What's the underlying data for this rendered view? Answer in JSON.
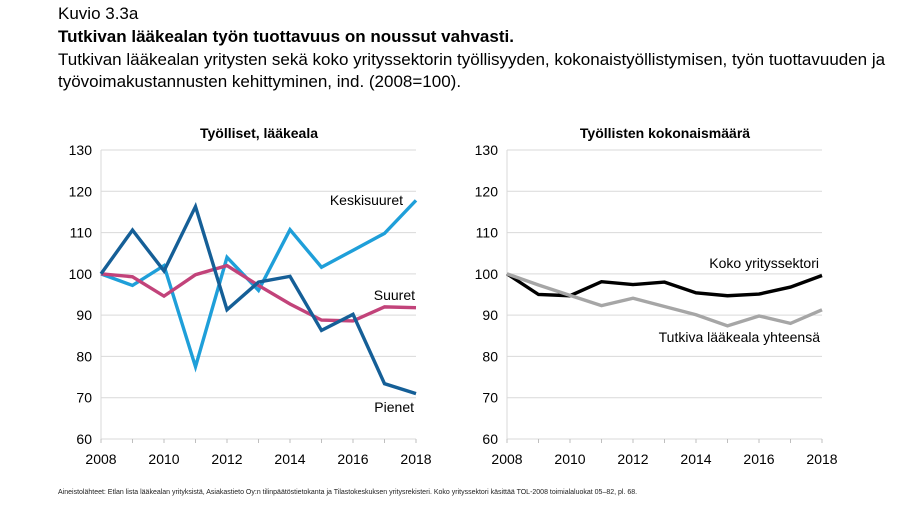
{
  "figure": {
    "label": "Kuvio 3.3a",
    "title": "Tutkivan lääkealan työn tuottavuus on noussut vahvasti.",
    "subtitle": "Tutkivan lääkealan yritysten sekä koko yrityssektorin työllisyyden, kokonaistyöllistymisen, työn tuottavuuden ja työvoimakustannusten kehittyminen, ind. (2008=100).",
    "source": "Aineistolähteet: Etlan lista lääkealan yrityksistä, Asiakastieto Oy:n tilinpäätöstietokanta ja Tilastokeskuksen yritysrekisteri. Koko yrityssektori käsittää TOL-2008 toimialaluokat 05–82, pl. 68."
  },
  "chart_data": [
    {
      "type": "line",
      "title": "Työlliset, lääkeala",
      "xlabel": "",
      "ylabel": "",
      "x": [
        2008,
        2009,
        2010,
        2011,
        2012,
        2013,
        2014,
        2015,
        2016,
        2017,
        2018
      ],
      "xticks": [
        2008,
        2010,
        2012,
        2014,
        2016,
        2018
      ],
      "yticks": [
        60,
        70,
        80,
        90,
        100,
        110,
        120,
        130
      ],
      "xlim": [
        2008,
        2018
      ],
      "ylim": [
        60,
        130
      ],
      "grid": "horizontal",
      "legend": "direct labels",
      "series": [
        {
          "name": "Keskisuuret",
          "color": "#1f9fd9",
          "values": [
            100,
            97.2,
            102,
            77.5,
            104,
            96,
            110.7,
            101.6,
            105.7,
            109.8,
            117.8
          ]
        },
        {
          "name": "Suuret",
          "color": "#c2437a",
          "values": [
            100,
            99.3,
            94.6,
            99.8,
            102,
            97.2,
            92.7,
            88.8,
            88.6,
            92,
            91.8
          ]
        },
        {
          "name": "Pienet",
          "color": "#155f97",
          "values": [
            100,
            110.6,
            100.7,
            116.3,
            91.3,
            98,
            99.4,
            86.3,
            90.2,
            73.4,
            71
          ]
        }
      ]
    },
    {
      "type": "line",
      "title": "Työllisten kokonaismäärä",
      "xlabel": "",
      "ylabel": "",
      "x": [
        2008,
        2009,
        2010,
        2011,
        2012,
        2013,
        2014,
        2015,
        2016,
        2017,
        2018
      ],
      "xticks": [
        2008,
        2010,
        2012,
        2014,
        2016,
        2018
      ],
      "yticks": [
        60,
        70,
        80,
        90,
        100,
        110,
        120,
        130
      ],
      "xlim": [
        2008,
        2018
      ],
      "ylim": [
        60,
        130
      ],
      "grid": "horizontal",
      "legend": "direct labels",
      "series": [
        {
          "name": "Koko yrityssektori",
          "color": "#000000",
          "values": [
            100,
            95,
            94.7,
            98.1,
            97.4,
            98,
            95.4,
            94.7,
            95.1,
            96.8,
            99.6
          ]
        },
        {
          "name": "Tutkiva lääkeala yhteensä",
          "color": "#a6a6a6",
          "values": [
            100,
            97.3,
            94.8,
            92.3,
            94.1,
            92.1,
            90.1,
            87.4,
            89.8,
            88,
            91.3
          ]
        }
      ]
    }
  ]
}
